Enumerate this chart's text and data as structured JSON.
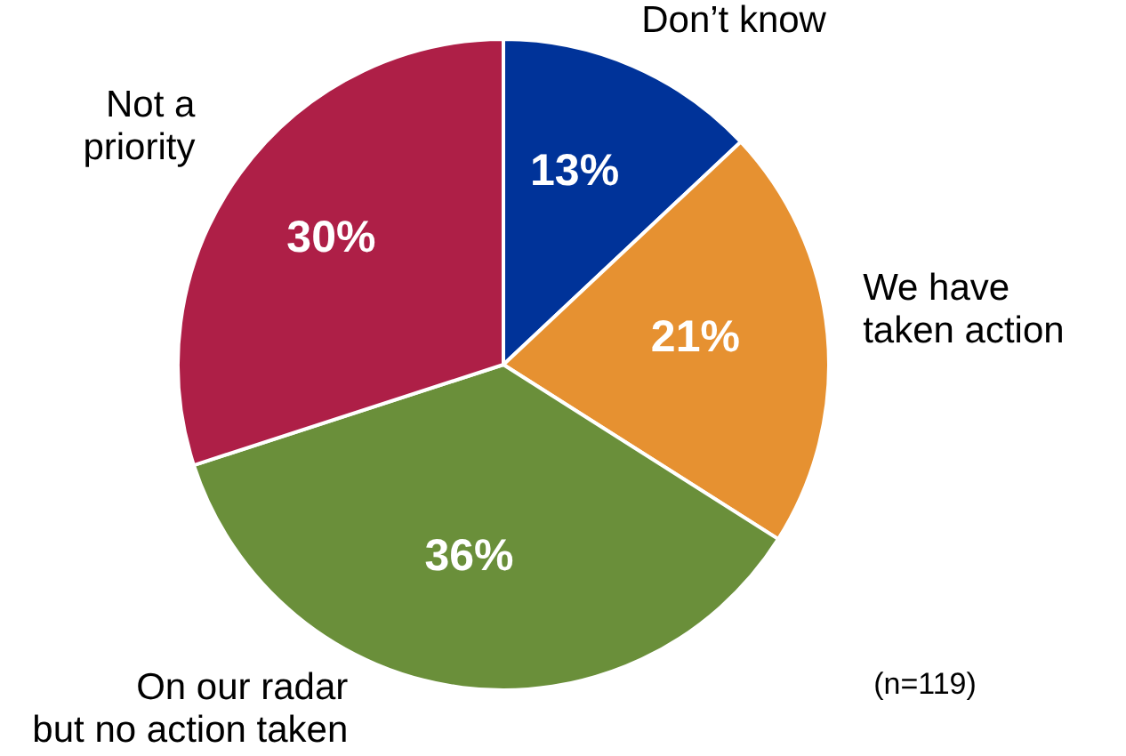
{
  "chart_data": {
    "type": "pie",
    "categories": [
      "Don’t know",
      "We have\ntaken action",
      "On our radar\nbut no action taken",
      "Not a\npriority"
    ],
    "values": [
      13,
      21,
      36,
      30
    ],
    "colors": [
      "#003399",
      "#e69131",
      "#6a8f3a",
      "#ae1f47"
    ],
    "value_labels": [
      "13%",
      "21%",
      "36%",
      "30%"
    ],
    "annotations": [
      "(n=119)"
    ]
  }
}
